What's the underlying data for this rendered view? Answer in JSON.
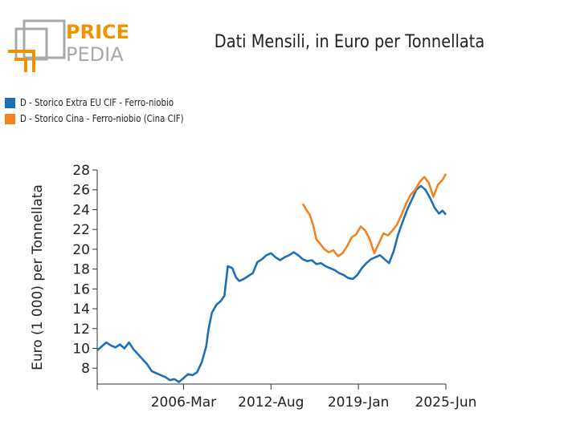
{
  "logo": {
    "word1": "PRICE",
    "word2": "PEDIA",
    "accent": "#f39200",
    "grey": "#a7a9ac"
  },
  "chart_data": {
    "type": "line",
    "title": "Dati Mensili, in Euro per Tonnellata",
    "ylabel": "Euro (1 000) per Tonnellata",
    "xlabel": "",
    "ylim": [
      6.4,
      28
    ],
    "yticks": [
      8,
      10,
      12,
      14,
      16,
      18,
      20,
      22,
      24,
      26,
      28
    ],
    "xlim": [
      "1999-11",
      "2025-06"
    ],
    "xticks": [
      "2006-Mar",
      "2012-Aug",
      "2019-Jan",
      "2025-Jun"
    ],
    "legend_position": "top-left",
    "grid": false,
    "series": [
      {
        "name": "D - Storico Extra EU CIF - Ferro-niobio",
        "color": "#1f6fb4",
        "points": [
          [
            "1999-11",
            9.8
          ],
          [
            "2000-03",
            10.2
          ],
          [
            "2000-07",
            10.6
          ],
          [
            "2000-11",
            10.3
          ],
          [
            "2001-03",
            10.1
          ],
          [
            "2001-07",
            10.4
          ],
          [
            "2001-11",
            10.0
          ],
          [
            "2002-03",
            10.6
          ],
          [
            "2002-07",
            9.9
          ],
          [
            "2002-11",
            9.4
          ],
          [
            "2003-03",
            8.9
          ],
          [
            "2003-07",
            8.4
          ],
          [
            "2003-11",
            7.7
          ],
          [
            "2004-03",
            7.5
          ],
          [
            "2004-07",
            7.3
          ],
          [
            "2004-11",
            7.1
          ],
          [
            "2005-03",
            6.8
          ],
          [
            "2005-07",
            6.9
          ],
          [
            "2005-11",
            6.6
          ],
          [
            "2006-03",
            7.0
          ],
          [
            "2006-07",
            7.4
          ],
          [
            "2006-11",
            7.3
          ],
          [
            "2007-03",
            7.6
          ],
          [
            "2007-07",
            8.6
          ],
          [
            "2007-11",
            10.2
          ],
          [
            "2008-01",
            11.9
          ],
          [
            "2008-04",
            13.6
          ],
          [
            "2008-08",
            14.4
          ],
          [
            "2008-12",
            14.8
          ],
          [
            "2009-03",
            15.3
          ],
          [
            "2009-06",
            18.3
          ],
          [
            "2009-10",
            18.1
          ],
          [
            "2010-01",
            17.2
          ],
          [
            "2010-04",
            16.8
          ],
          [
            "2010-08",
            17.0
          ],
          [
            "2010-12",
            17.3
          ],
          [
            "2011-04",
            17.6
          ],
          [
            "2011-08",
            18.7
          ],
          [
            "2011-12",
            19.0
          ],
          [
            "2012-04",
            19.4
          ],
          [
            "2012-08",
            19.6
          ],
          [
            "2012-12",
            19.2
          ],
          [
            "2013-04",
            18.9
          ],
          [
            "2013-08",
            19.2
          ],
          [
            "2013-12",
            19.4
          ],
          [
            "2014-04",
            19.7
          ],
          [
            "2014-08",
            19.4
          ],
          [
            "2014-12",
            19.0
          ],
          [
            "2015-04",
            18.8
          ],
          [
            "2015-08",
            18.9
          ],
          [
            "2015-12",
            18.5
          ],
          [
            "2016-04",
            18.6
          ],
          [
            "2016-08",
            18.3
          ],
          [
            "2016-12",
            18.1
          ],
          [
            "2017-04",
            17.9
          ],
          [
            "2017-08",
            17.6
          ],
          [
            "2017-12",
            17.4
          ],
          [
            "2018-04",
            17.1
          ],
          [
            "2018-08",
            17.0
          ],
          [
            "2018-12",
            17.4
          ],
          [
            "2019-04",
            18.1
          ],
          [
            "2019-08",
            18.6
          ],
          [
            "2019-12",
            19.0
          ],
          [
            "2020-04",
            19.2
          ],
          [
            "2020-08",
            19.4
          ],
          [
            "2020-12",
            19.0
          ],
          [
            "2021-04",
            18.6
          ],
          [
            "2021-08",
            19.8
          ],
          [
            "2021-12",
            21.5
          ],
          [
            "2022-04",
            22.8
          ],
          [
            "2022-08",
            24.0
          ],
          [
            "2022-12",
            25.0
          ],
          [
            "2023-04",
            26.0
          ],
          [
            "2023-08",
            26.4
          ],
          [
            "2023-12",
            26.0
          ],
          [
            "2024-04",
            25.2
          ],
          [
            "2024-08",
            24.2
          ],
          [
            "2024-12",
            23.6
          ],
          [
            "2025-03",
            23.9
          ],
          [
            "2025-06",
            23.5
          ]
        ]
      },
      {
        "name": "D - Storico Cina - Ferro-niobio (Cina CIF)",
        "color": "#f58220",
        "points": [
          [
            "2014-12",
            24.6
          ],
          [
            "2015-03",
            24.0
          ],
          [
            "2015-06",
            23.5
          ],
          [
            "2015-09",
            22.5
          ],
          [
            "2015-12",
            21.0
          ],
          [
            "2016-03",
            20.6
          ],
          [
            "2016-07",
            20.0
          ],
          [
            "2016-11",
            19.7
          ],
          [
            "2017-03",
            19.9
          ],
          [
            "2017-07",
            19.3
          ],
          [
            "2017-11",
            19.6
          ],
          [
            "2018-03",
            20.3
          ],
          [
            "2018-07",
            21.2
          ],
          [
            "2018-11",
            21.5
          ],
          [
            "2019-03",
            22.3
          ],
          [
            "2019-07",
            21.9
          ],
          [
            "2019-11",
            21.0
          ],
          [
            "2020-03",
            19.6
          ],
          [
            "2020-07",
            20.6
          ],
          [
            "2020-11",
            21.6
          ],
          [
            "2021-03",
            21.4
          ],
          [
            "2021-07",
            21.9
          ],
          [
            "2021-11",
            22.5
          ],
          [
            "2022-03",
            23.5
          ],
          [
            "2022-07",
            24.6
          ],
          [
            "2022-11",
            25.5
          ],
          [
            "2023-03",
            26.0
          ],
          [
            "2023-07",
            26.8
          ],
          [
            "2023-11",
            27.3
          ],
          [
            "2024-03",
            26.7
          ],
          [
            "2024-07",
            25.3
          ],
          [
            "2024-11",
            26.5
          ],
          [
            "2025-03",
            27.0
          ],
          [
            "2025-06",
            27.6
          ]
        ]
      }
    ]
  }
}
